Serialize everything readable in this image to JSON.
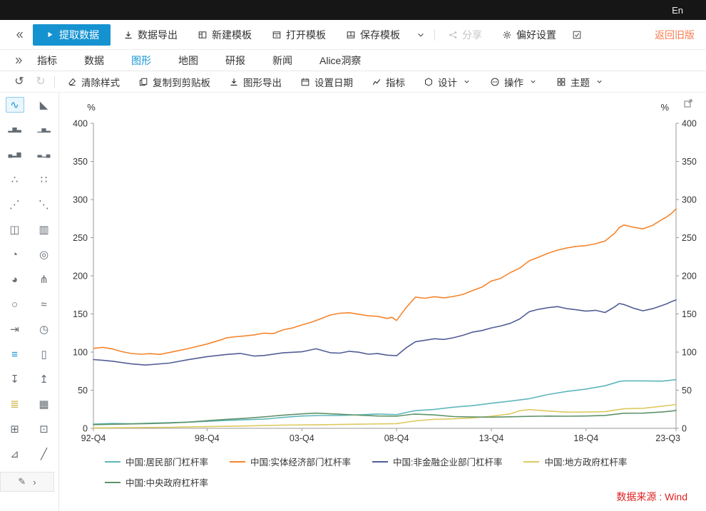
{
  "colors": {
    "accent": "#1593d1",
    "back_link": "#fa7c51",
    "source": "#e02020"
  },
  "topbar": {
    "language": "En"
  },
  "toolbar_main": {
    "extract_label": "提取数据",
    "export_label": "数据导出",
    "new_template_label": "新建模板",
    "open_template_label": "打开模板",
    "save_template_label": "保存模板",
    "share_label": "分享",
    "preferences_label": "偏好设置",
    "back_to_old_label": "返回旧版"
  },
  "nav_tabs": {
    "items": [
      {
        "id": "indicators",
        "label": "指标",
        "active": false
      },
      {
        "id": "data",
        "label": "数据",
        "active": false
      },
      {
        "id": "chart",
        "label": "图形",
        "active": true
      },
      {
        "id": "map",
        "label": "地图",
        "active": false
      },
      {
        "id": "research",
        "label": "研报",
        "active": false
      },
      {
        "id": "news",
        "label": "新闻",
        "active": false
      },
      {
        "id": "alice-insight",
        "label": "Alice洞察",
        "active": false
      }
    ]
  },
  "chart_toolbar": {
    "undo_glyph": "↺",
    "redo_glyph": "↻",
    "clear_style_label": "清除样式",
    "copy_clipboard_label": "复制到剪贴板",
    "export_chart_label": "图形导出",
    "set_date_label": "设置日期",
    "indicator_label": "指标",
    "design_label": "设计",
    "operate_label": "操作",
    "theme_label": "主题"
  },
  "sidebar": {
    "icons": [
      {
        "name": "line-chart-icon",
        "glyph": "∿",
        "selected": true
      },
      {
        "name": "area-chart-icon",
        "glyph": "◣"
      },
      {
        "name": "bar-chart-icon",
        "glyph": "▂▆▃"
      },
      {
        "name": "bar-chart-labeled-icon",
        "glyph": "▁▅▂"
      },
      {
        "name": "column-chart-icon",
        "glyph": "▄▂▆"
      },
      {
        "name": "column-chart-labeled-icon",
        "glyph": "▃▁▄"
      },
      {
        "name": "scatter-chart-icon",
        "glyph": "∴"
      },
      {
        "name": "line-points-chart-icon",
        "glyph": "∷"
      },
      {
        "name": "bubble-chart-icon",
        "glyph": "⋰"
      },
      {
        "name": "point-chart-icon",
        "glyph": "⋱"
      },
      {
        "name": "candlestick-chart-icon",
        "glyph": "◫"
      },
      {
        "name": "hilo-chart-icon",
        "glyph": "▥"
      },
      {
        "name": "pie-chart-icon",
        "glyph": "◔"
      },
      {
        "name": "donut-chart-icon",
        "glyph": "◎"
      },
      {
        "name": "gauge-chart-icon",
        "glyph": "◕"
      },
      {
        "name": "tree-chart-icon",
        "glyph": "⋔"
      },
      {
        "name": "zoom-tool-icon",
        "glyph": "○"
      },
      {
        "name": "fit-curve-icon",
        "glyph": "≈"
      },
      {
        "name": "shift-axis-icon",
        "glyph": "⇥"
      },
      {
        "name": "time-chart-icon",
        "glyph": "◷"
      },
      {
        "name": "list-view-icon",
        "glyph": "≡",
        "color": "#1593d1"
      },
      {
        "name": "report-view-icon",
        "glyph": "▯"
      },
      {
        "name": "export-bottom-icon",
        "glyph": "↧"
      },
      {
        "name": "export-top-icon",
        "glyph": "↥"
      },
      {
        "name": "hbar-chart-icon",
        "glyph": "≣",
        "color": "#cdb44a"
      },
      {
        "name": "histogram-chart-icon",
        "glyph": "▦"
      },
      {
        "name": "annotation-icon",
        "glyph": "⊞"
      },
      {
        "name": "add-panel-icon",
        "glyph": "⊡"
      },
      {
        "name": "angle-chart-icon",
        "glyph": "⊿"
      },
      {
        "name": "trend-line-icon",
        "glyph": "╱"
      }
    ],
    "edit_toggle": {
      "pencil_glyph": "✎",
      "chevron_glyph": "›"
    }
  },
  "chart_data": {
    "type": "line",
    "y_unit_left": "%",
    "y_unit_right": "%",
    "ylim": [
      0,
      400
    ],
    "y_ticks": [
      0,
      50,
      100,
      150,
      200,
      250,
      300,
      350,
      400
    ],
    "xlim": [
      1992.75,
      2023.5
    ],
    "x_ticks": [
      "92-Q4",
      "98-Q4",
      "03-Q4",
      "08-Q4",
      "13-Q4",
      "18-Q4",
      "23-Q3"
    ],
    "x_tick_positions": [
      1992.75,
      1998.75,
      2003.75,
      2008.75,
      2013.75,
      2018.75,
      2023.5
    ],
    "grid": false,
    "legend_position": "bottom",
    "source_note": "数据来源 : Wind",
    "series": [
      {
        "id": "household",
        "name": "中国:居民部门杠杆率",
        "color": "#5eb6bc",
        "points": [
          [
            1992.75,
            5.6
          ],
          [
            1993.75,
            6.4
          ],
          [
            1994.75,
            6.1
          ],
          [
            1995.75,
            6.7
          ],
          [
            1996.75,
            7.4
          ],
          [
            1997.75,
            8.1
          ],
          [
            1998.75,
            9.2
          ],
          [
            1999.75,
            10.4
          ],
          [
            2000.75,
            11.3
          ],
          [
            2001.75,
            12.1
          ],
          [
            2002.75,
            14.3
          ],
          [
            2003.75,
            16.2
          ],
          [
            2004.75,
            16.8
          ],
          [
            2005.75,
            16.9
          ],
          [
            2006.75,
            17.8
          ],
          [
            2007.75,
            18.8
          ],
          [
            2008.75,
            17.9
          ],
          [
            2009.5,
            22.1
          ],
          [
            2009.75,
            23.2
          ],
          [
            2010.75,
            24.9
          ],
          [
            2011.75,
            27.8
          ],
          [
            2012.75,
            29.7
          ],
          [
            2013.75,
            32.9
          ],
          [
            2014.75,
            35.7
          ],
          [
            2015.75,
            38.9
          ],
          [
            2016.75,
            44.4
          ],
          [
            2017.75,
            48.4
          ],
          [
            2018.75,
            51.5
          ],
          [
            2019.75,
            55.8
          ],
          [
            2020.5,
            61.4
          ],
          [
            2020.75,
            62.2
          ],
          [
            2021.75,
            62.2
          ],
          [
            2022.75,
            61.9
          ],
          [
            2023.5,
            63.8
          ]
        ]
      },
      {
        "id": "real-economy",
        "name": "中国:实体经济部门杠杆率",
        "color": "#f5852c",
        "points": [
          [
            1992.75,
            104.9
          ],
          [
            1993.25,
            106.2
          ],
          [
            1993.75,
            104.1
          ],
          [
            1994.25,
            100.6
          ],
          [
            1994.75,
            98.1
          ],
          [
            1995.25,
            97.2
          ],
          [
            1995.75,
            97.9
          ],
          [
            1996.25,
            96.9
          ],
          [
            1996.75,
            99.3
          ],
          [
            1997.75,
            104.6
          ],
          [
            1998.75,
            110.6
          ],
          [
            1999.5,
            116.2
          ],
          [
            1999.75,
            118.6
          ],
          [
            2000.25,
            120.1
          ],
          [
            2000.75,
            121.2
          ],
          [
            2001.25,
            122.6
          ],
          [
            2001.75,
            124.9
          ],
          [
            2002.25,
            124.2
          ],
          [
            2002.75,
            129.1
          ],
          [
            2003.25,
            131.6
          ],
          [
            2003.75,
            135.6
          ],
          [
            2004.25,
            139.2
          ],
          [
            2004.75,
            143.6
          ],
          [
            2005.25,
            148.6
          ],
          [
            2005.75,
            150.9
          ],
          [
            2006.25,
            151.6
          ],
          [
            2006.75,
            149.6
          ],
          [
            2007.25,
            147.6
          ],
          [
            2007.75,
            146.9
          ],
          [
            2008.25,
            144.1
          ],
          [
            2008.5,
            145.6
          ],
          [
            2008.75,
            141.4
          ],
          [
            2009.25,
            158.2
          ],
          [
            2009.75,
            172.1
          ],
          [
            2010.25,
            170.6
          ],
          [
            2010.75,
            172.6
          ],
          [
            2011.25,
            171.1
          ],
          [
            2011.75,
            172.9
          ],
          [
            2012.25,
            175.6
          ],
          [
            2012.75,
            180.6
          ],
          [
            2013.25,
            185.1
          ],
          [
            2013.75,
            193.2
          ],
          [
            2014.25,
            196.6
          ],
          [
            2014.75,
            204.2
          ],
          [
            2015.25,
            210.1
          ],
          [
            2015.75,
            219.6
          ],
          [
            2016.25,
            224.6
          ],
          [
            2016.75,
            229.6
          ],
          [
            2017.25,
            233.6
          ],
          [
            2017.75,
            236.6
          ],
          [
            2018.25,
            238.6
          ],
          [
            2018.75,
            239.6
          ],
          [
            2019.25,
            242.1
          ],
          [
            2019.75,
            245.6
          ],
          [
            2020.25,
            255.6
          ],
          [
            2020.5,
            263.1
          ],
          [
            2020.75,
            266.6
          ],
          [
            2021.25,
            263.6
          ],
          [
            2021.75,
            261.6
          ],
          [
            2022.25,
            266.1
          ],
          [
            2022.75,
            273.6
          ],
          [
            2023.0,
            277.1
          ],
          [
            2023.25,
            281.6
          ],
          [
            2023.5,
            287.8
          ]
        ]
      },
      {
        "id": "nonfinancial-corporate",
        "name": "中国:非金融企业部门杠杆率",
        "color": "#525d96",
        "points": [
          [
            1992.75,
            90.2
          ],
          [
            1993.25,
            89.2
          ],
          [
            1993.75,
            88.0
          ],
          [
            1994.75,
            84.5
          ],
          [
            1995.5,
            83.0
          ],
          [
            1996.75,
            85.5
          ],
          [
            1997.75,
            90.0
          ],
          [
            1998.75,
            94.0
          ],
          [
            1999.75,
            96.8
          ],
          [
            2000.5,
            98.2
          ],
          [
            2001.25,
            94.8
          ],
          [
            2001.75,
            95.5
          ],
          [
            2002.75,
            99.0
          ],
          [
            2003.75,
            100.4
          ],
          [
            2004.5,
            104.3
          ],
          [
            2005.25,
            99.2
          ],
          [
            2005.75,
            98.6
          ],
          [
            2006.25,
            101.0
          ],
          [
            2006.75,
            99.8
          ],
          [
            2007.25,
            97.2
          ],
          [
            2007.75,
            98.0
          ],
          [
            2008.25,
            96.0
          ],
          [
            2008.75,
            95.2
          ],
          [
            2009.25,
            105.5
          ],
          [
            2009.75,
            113.6
          ],
          [
            2010.25,
            115.5
          ],
          [
            2010.75,
            117.5
          ],
          [
            2011.25,
            116.5
          ],
          [
            2011.75,
            118.8
          ],
          [
            2012.25,
            122.0
          ],
          [
            2012.75,
            126.1
          ],
          [
            2013.25,
            128.2
          ],
          [
            2013.75,
            131.7
          ],
          [
            2014.25,
            134.2
          ],
          [
            2014.75,
            137.7
          ],
          [
            2015.25,
            143.5
          ],
          [
            2015.75,
            152.9
          ],
          [
            2016.25,
            156.2
          ],
          [
            2016.75,
            158.2
          ],
          [
            2017.25,
            159.6
          ],
          [
            2017.75,
            156.9
          ],
          [
            2018.25,
            155.4
          ],
          [
            2018.75,
            153.6
          ],
          [
            2019.25,
            154.8
          ],
          [
            2019.75,
            151.9
          ],
          [
            2020.25,
            159.2
          ],
          [
            2020.5,
            163.6
          ],
          [
            2020.75,
            162.3
          ],
          [
            2021.25,
            157.6
          ],
          [
            2021.75,
            154.1
          ],
          [
            2022.25,
            156.8
          ],
          [
            2022.75,
            160.9
          ],
          [
            2023.0,
            163.2
          ],
          [
            2023.25,
            166.1
          ],
          [
            2023.5,
            168.3
          ]
        ]
      },
      {
        "id": "local-government",
        "name": "中国:地方政府杠杆率",
        "color": "#ddc95e",
        "points": [
          [
            1992.75,
            0.6
          ],
          [
            1994.75,
            0.9
          ],
          [
            1996.75,
            1.4
          ],
          [
            1998.75,
            2.2
          ],
          [
            2000.75,
            3.1
          ],
          [
            2002.75,
            4.2
          ],
          [
            2004.75,
            4.8
          ],
          [
            2006.75,
            5.4
          ],
          [
            2008.75,
            6.2
          ],
          [
            2009.75,
            9.8
          ],
          [
            2010.75,
            11.9
          ],
          [
            2011.75,
            12.4
          ],
          [
            2012.75,
            13.6
          ],
          [
            2013.75,
            15.9
          ],
          [
            2014.75,
            19.0
          ],
          [
            2015.25,
            23.1
          ],
          [
            2015.75,
            24.6
          ],
          [
            2016.75,
            22.7
          ],
          [
            2017.75,
            21.2
          ],
          [
            2018.75,
            21.3
          ],
          [
            2019.75,
            21.9
          ],
          [
            2020.75,
            25.6
          ],
          [
            2021.75,
            26.3
          ],
          [
            2022.75,
            29.1
          ],
          [
            2023.25,
            30.4
          ],
          [
            2023.5,
            31.5
          ]
        ]
      },
      {
        "id": "central-government",
        "name": "中国:中央政府杠杆率",
        "color": "#5f9268",
        "points": [
          [
            1992.75,
            4.9
          ],
          [
            1993.75,
            5.3
          ],
          [
            1994.75,
            5.8
          ],
          [
            1995.75,
            6.3
          ],
          [
            1996.75,
            6.9
          ],
          [
            1997.75,
            8.1
          ],
          [
            1998.75,
            10.0
          ],
          [
            1999.75,
            11.8
          ],
          [
            2000.75,
            13.2
          ],
          [
            2001.75,
            15.0
          ],
          [
            2002.75,
            17.2
          ],
          [
            2003.75,
            19.0
          ],
          [
            2004.5,
            19.9
          ],
          [
            2005.75,
            18.5
          ],
          [
            2006.75,
            17.3
          ],
          [
            2007.75,
            16.2
          ],
          [
            2008.75,
            15.9
          ],
          [
            2009.5,
            18.2
          ],
          [
            2009.75,
            18.6
          ],
          [
            2010.75,
            17.6
          ],
          [
            2011.75,
            15.4
          ],
          [
            2012.75,
            14.9
          ],
          [
            2013.75,
            14.7
          ],
          [
            2014.75,
            15.1
          ],
          [
            2015.75,
            15.7
          ],
          [
            2016.75,
            16.1
          ],
          [
            2017.75,
            15.9
          ],
          [
            2018.75,
            16.2
          ],
          [
            2019.75,
            16.9
          ],
          [
            2020.75,
            19.8
          ],
          [
            2021.75,
            19.9
          ],
          [
            2022.75,
            21.4
          ],
          [
            2023.25,
            22.6
          ],
          [
            2023.5,
            23.5
          ]
        ]
      }
    ]
  }
}
